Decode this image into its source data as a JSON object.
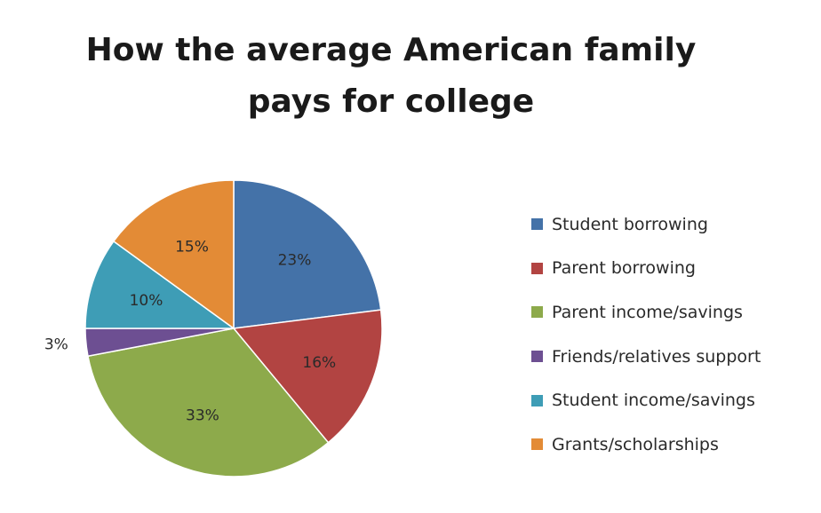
{
  "title_lines": [
    "How the average American family",
    "pays for college"
  ],
  "chart_data": {
    "type": "pie",
    "title": "How the average American family pays for college",
    "unit": "%",
    "legend_position": "right",
    "slices": [
      {
        "name": "Student borrowing",
        "value": 23,
        "label": "23%",
        "color": "#4472A8"
      },
      {
        "name": "Parent borrowing",
        "value": 16,
        "label": "16%",
        "color": "#B24442"
      },
      {
        "name": "Parent income/savings",
        "value": 33,
        "label": "33%",
        "color": "#8DAA4B"
      },
      {
        "name": "Friends/relatives support",
        "value": 3,
        "label": "3%",
        "color": "#6D4F92"
      },
      {
        "name": "Student income/savings",
        "value": 10,
        "label": "10%",
        "color": "#3E9DB6"
      },
      {
        "name": "Grants/scholarships",
        "value": 15,
        "label": "15%",
        "color": "#E38B36"
      }
    ]
  }
}
